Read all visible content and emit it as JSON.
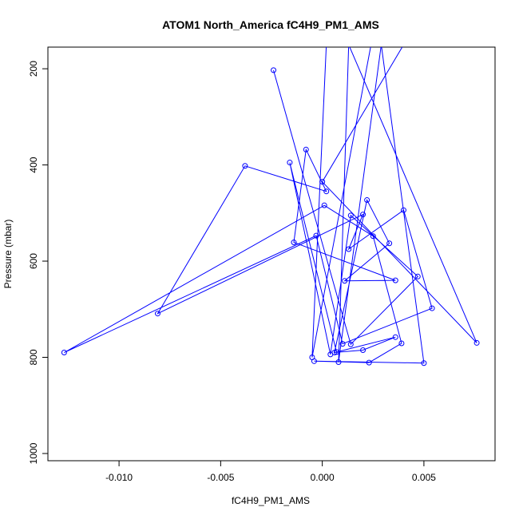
{
  "chart_data": {
    "type": "line",
    "title": "ATOM1 North_America fC4H9_PM1_AMS",
    "xlabel": "fC4H9_PM1_AMS",
    "ylabel": "Pressure (mbar)",
    "xlim": [
      -0.0135,
      0.0085
    ],
    "ylim": [
      1015,
      155
    ],
    "y_reversed": true,
    "grid": false,
    "legend": "none",
    "x_ticks": [
      {
        "value": -0.01,
        "label": "-0.010"
      },
      {
        "value": -0.005,
        "label": "-0.005"
      },
      {
        "value": 0.0,
        "label": "0.000"
      },
      {
        "value": 0.005,
        "label": "0.005"
      }
    ],
    "y_ticks": [
      {
        "value": 200,
        "label": "200"
      },
      {
        "value": 400,
        "label": "400"
      },
      {
        "value": 600,
        "label": "600"
      },
      {
        "value": 800,
        "label": "800"
      },
      {
        "value": 1000,
        "label": "1000"
      }
    ],
    "colors": {
      "series": "#0000ff",
      "axis": "#000000",
      "text": "#000000"
    },
    "series": [
      {
        "x": [
          -0.0024,
          0.0014,
          0.0047,
          0.0014,
          0.0004,
          -0.0016,
          0.0007,
          0.0036,
          0.002,
          0.0006,
          0.0022,
          0.0033,
          0.0011,
          0.0036,
          -0.0014,
          -0.0008,
          0.0002,
          -0.0038,
          -0.0081,
          0.002,
          0.0013,
          0.004,
          0.0054,
          0.001,
          -0.0003,
          -0.0127,
          0.0001,
          0.0025,
          0.0039,
          0.0023,
          -0.0004,
          0.005,
          0.0029,
          0.0008,
          0.0013,
          0.0076,
          0.0,
          0.004,
          0.0032,
          0.0012,
          0.0024,
          -0.0005,
          0.0002
        ],
        "y": [
          203,
          773,
          632,
          505,
          794,
          395,
          789,
          758,
          785,
          790,
          473,
          563,
          641,
          640,
          561,
          368,
          455,
          402,
          709,
          503,
          575,
          494,
          698,
          772,
          547,
          790,
          484,
          548,
          771,
          811,
          808,
          812,
          150,
          810,
          150,
          770,
          435,
          150,
          150,
          150,
          150,
          800,
          150
        ]
      }
    ]
  }
}
